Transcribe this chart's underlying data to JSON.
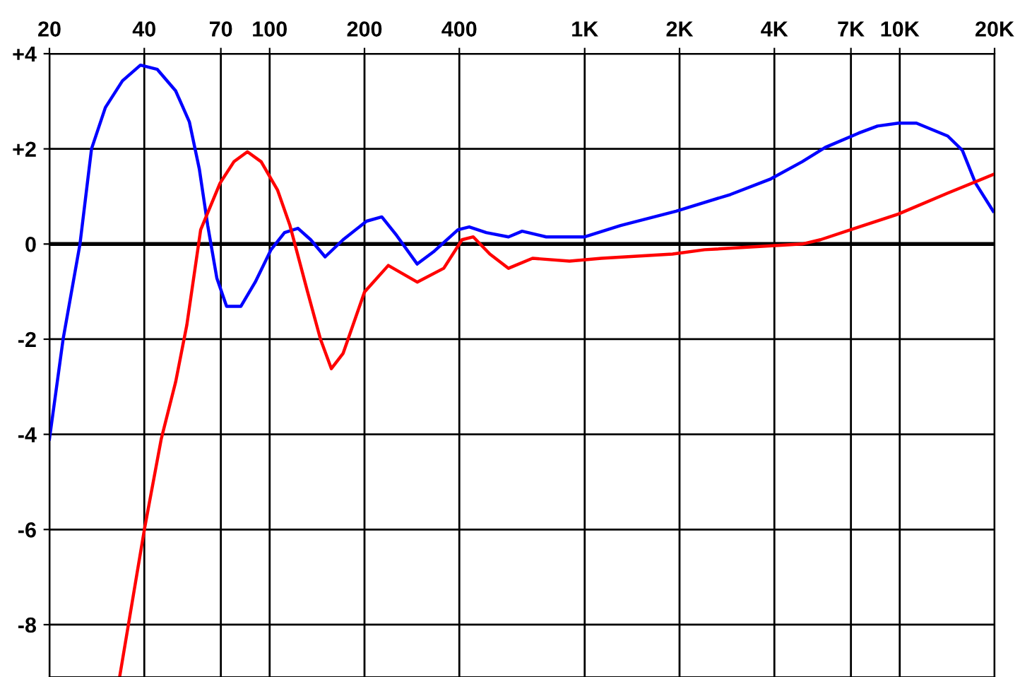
{
  "chart_data": {
    "type": "line",
    "log": "x",
    "grid": true,
    "marker": "none",
    "line_style": "solid",
    "xlim": [
      20,
      20000
    ],
    "ylim": [
      -9.1,
      4
    ],
    "xticks": [
      20,
      40,
      70,
      100,
      200,
      400,
      {
        "value": 1000,
        "label": "1K"
      },
      {
        "value": 2000,
        "label": "2K"
      },
      {
        "value": 4000,
        "label": "4K"
      },
      {
        "value": 7000,
        "label": "7K"
      },
      {
        "value": 10000,
        "label": "10K"
      },
      {
        "value": 20000,
        "label": "20K"
      }
    ],
    "yticks": [
      {
        "value": -8,
        "label": "-8"
      },
      {
        "value": -6,
        "label": "-6"
      },
      {
        "value": -4,
        "label": "-4"
      },
      {
        "value": -2,
        "label": "-2"
      },
      0,
      {
        "value": 2,
        "label": "+2"
      },
      {
        "value": 4,
        "label": "+4"
      }
    ],
    "series": [
      {
        "color": "#0000ff",
        "x": [
          20,
          22.1,
          25,
          27.2,
          30.1,
          34.1,
          38.9,
          44,
          50.3,
          55.6,
          59.8,
          63.6,
          68,
          73,
          81,
          90,
          101,
          111.5,
          123,
          135,
          150,
          171,
          203,
          227,
          253,
          294,
          333,
          396,
          430,
          487,
          573,
          633,
          755,
          1000,
          1300,
          1950,
          2900,
          3900,
          4900,
          5800,
          7400,
          8500,
          9900,
          11300,
          14200,
          15800,
          17400,
          19800
        ],
        "values": [
          -4.1,
          -2.0,
          0,
          2.0,
          2.87,
          3.43,
          3.76,
          3.67,
          3.22,
          2.57,
          1.58,
          0.39,
          -0.72,
          -1.31,
          -1.31,
          -0.8,
          -0.12,
          0.24,
          0.33,
          0.09,
          -0.27,
          0.09,
          0.48,
          0.57,
          0.18,
          -0.42,
          -0.15,
          0.3,
          0.36,
          0.24,
          0.15,
          0.27,
          0.15,
          0.15,
          0.39,
          0.69,
          1.04,
          1.37,
          1.73,
          2.03,
          2.33,
          2.48,
          2.54,
          2.54,
          2.27,
          1.97,
          1.28,
          0.69
        ]
      },
      {
        "color": "#ff0000",
        "x": [
          33.4,
          40.1,
          45.3,
          50.3,
          54.6,
          60.4,
          69.6,
          77,
          85,
          94,
          106,
          116,
          132,
          145,
          157,
          171,
          200,
          238,
          294,
          357,
          408,
          443,
          500,
          573,
          683,
          895,
          1130,
          1900,
          2400,
          4900,
          5600,
          7200,
          9900,
          14200,
          19800
        ],
        "values": [
          -9.1,
          -5.97,
          -4.09,
          -2.9,
          -1.7,
          0.3,
          1.28,
          1.73,
          1.94,
          1.73,
          1.13,
          0.39,
          -1.01,
          -2.0,
          -2.62,
          -2.3,
          -1.01,
          -0.45,
          -0.8,
          -0.51,
          0.09,
          0.15,
          -0.21,
          -0.51,
          -0.3,
          -0.36,
          -0.3,
          -0.21,
          -0.12,
          0,
          0.09,
          0.33,
          0.63,
          1.07,
          1.46
        ]
      }
    ]
  }
}
